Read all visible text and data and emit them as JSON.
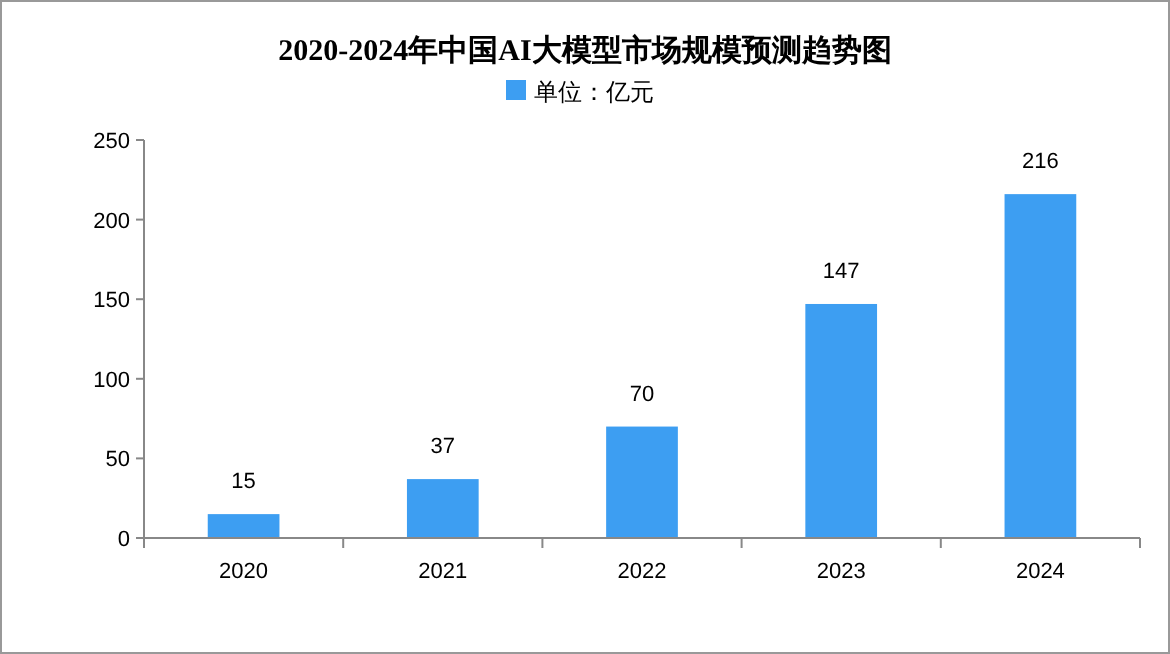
{
  "chart_data": {
    "type": "bar",
    "title": "2020-2024年中国AI大模型市场规模预测趋势图",
    "categories": [
      "2020",
      "2021",
      "2022",
      "2023",
      "2024"
    ],
    "series": [
      {
        "name": "单位：亿元",
        "color": "#3d9ef2",
        "values": [
          15,
          37,
          70,
          147,
          216
        ]
      }
    ],
    "ylim": [
      0,
      250
    ],
    "yticks": [
      0,
      50,
      100,
      150,
      200,
      250
    ],
    "grid": false,
    "legend": "top",
    "data_labels": true
  }
}
